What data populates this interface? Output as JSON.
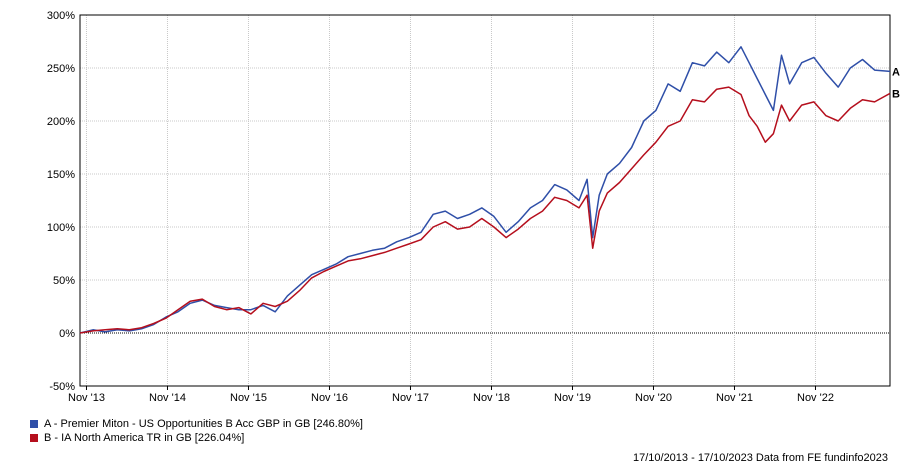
{
  "chart_data": {
    "type": "line",
    "title": "",
    "xlabel": "",
    "ylabel": "",
    "ylim": [
      -50,
      300
    ],
    "y_ticks": [
      "-50%",
      "0%",
      "50%",
      "100%",
      "150%",
      "200%",
      "250%",
      "300%"
    ],
    "y_tick_values": [
      -50,
      0,
      50,
      100,
      150,
      200,
      250,
      300
    ],
    "x_ticks": [
      "Nov '13",
      "Nov '14",
      "Nov '15",
      "Nov '16",
      "Nov '17",
      "Nov '18",
      "Nov '19",
      "Nov '20",
      "Nov '21",
      "Nov '22"
    ],
    "x_tick_values": [
      2013.87,
      2014.87,
      2015.87,
      2016.87,
      2017.87,
      2018.87,
      2019.87,
      2020.87,
      2021.87,
      2022.87
    ],
    "xlim": [
      2013.79,
      2023.79
    ],
    "grid": true,
    "legend_position": "bottom-left",
    "series": [
      {
        "name": "A - Premier Miton - US Opportunities B Acc GBP in GB [246.80%]",
        "end_label": "A",
        "color": "#2f4fa8",
        "x": [
          2013.79,
          2013.95,
          2014.1,
          2014.25,
          2014.4,
          2014.55,
          2014.7,
          2014.85,
          2015.0,
          2015.15,
          2015.3,
          2015.45,
          2015.6,
          2015.75,
          2015.9,
          2016.05,
          2016.2,
          2016.35,
          2016.5,
          2016.65,
          2016.8,
          2016.95,
          2017.1,
          2017.25,
          2017.4,
          2017.55,
          2017.7,
          2017.85,
          2018.0,
          2018.15,
          2018.3,
          2018.45,
          2018.6,
          2018.75,
          2018.9,
          2019.05,
          2019.2,
          2019.35,
          2019.5,
          2019.65,
          2019.8,
          2019.95,
          2020.05,
          2020.12,
          2020.2,
          2020.3,
          2020.45,
          2020.6,
          2020.75,
          2020.9,
          2021.05,
          2021.2,
          2021.35,
          2021.5,
          2021.65,
          2021.8,
          2021.95,
          2022.05,
          2022.15,
          2022.25,
          2022.35,
          2022.45,
          2022.55,
          2022.7,
          2022.85,
          2023.0,
          2023.15,
          2023.3,
          2023.45,
          2023.6,
          2023.79
        ],
        "values": [
          0,
          3,
          1,
          3,
          2,
          4,
          8,
          15,
          20,
          28,
          31,
          26,
          24,
          22,
          22,
          26,
          20,
          35,
          45,
          55,
          60,
          65,
          72,
          75,
          78,
          80,
          86,
          90,
          95,
          112,
          115,
          108,
          112,
          118,
          110,
          95,
          105,
          118,
          125,
          140,
          135,
          125,
          145,
          90,
          130,
          150,
          160,
          175,
          200,
          210,
          235,
          228,
          255,
          252,
          265,
          255,
          270,
          255,
          240,
          225,
          210,
          262,
          235,
          255,
          260,
          245,
          232,
          250,
          258,
          248,
          246.8
        ]
      },
      {
        "name": "B - IA North America TR in GB [226.04%]",
        "end_label": "B",
        "color": "#b50f1d",
        "x": [
          2013.79,
          2013.95,
          2014.1,
          2014.25,
          2014.4,
          2014.55,
          2014.7,
          2014.85,
          2015.0,
          2015.15,
          2015.3,
          2015.45,
          2015.6,
          2015.75,
          2015.9,
          2016.05,
          2016.2,
          2016.35,
          2016.5,
          2016.65,
          2016.8,
          2016.95,
          2017.1,
          2017.25,
          2017.4,
          2017.55,
          2017.7,
          2017.85,
          2018.0,
          2018.15,
          2018.3,
          2018.45,
          2018.6,
          2018.75,
          2018.9,
          2019.05,
          2019.2,
          2019.35,
          2019.5,
          2019.65,
          2019.8,
          2019.95,
          2020.05,
          2020.12,
          2020.2,
          2020.3,
          2020.45,
          2020.6,
          2020.75,
          2020.9,
          2021.05,
          2021.2,
          2021.35,
          2021.5,
          2021.65,
          2021.8,
          2021.95,
          2022.05,
          2022.15,
          2022.25,
          2022.35,
          2022.45,
          2022.55,
          2022.7,
          2022.85,
          2023.0,
          2023.15,
          2023.3,
          2023.45,
          2023.6,
          2023.79
        ],
        "values": [
          0,
          2,
          3,
          4,
          3,
          5,
          9,
          14,
          22,
          30,
          32,
          25,
          22,
          24,
          18,
          28,
          25,
          30,
          40,
          52,
          58,
          63,
          68,
          70,
          73,
          76,
          80,
          84,
          88,
          100,
          105,
          98,
          100,
          108,
          100,
          90,
          98,
          108,
          115,
          128,
          125,
          118,
          130,
          80,
          115,
          132,
          142,
          155,
          168,
          180,
          195,
          200,
          220,
          218,
          230,
          232,
          225,
          205,
          195,
          180,
          188,
          215,
          200,
          215,
          218,
          205,
          200,
          212,
          220,
          218,
          226.04
        ]
      }
    ]
  },
  "legend": {
    "items": [
      {
        "label": "A - Premier Miton - US Opportunities B Acc GBP in GB [246.80%]",
        "color": "#2f4fa8"
      },
      {
        "label": "B - IA North America TR in GB [226.04%]",
        "color": "#b50f1d"
      }
    ]
  },
  "footer": {
    "text": "17/10/2013 - 17/10/2023 Data from FE fundinfo2023"
  }
}
